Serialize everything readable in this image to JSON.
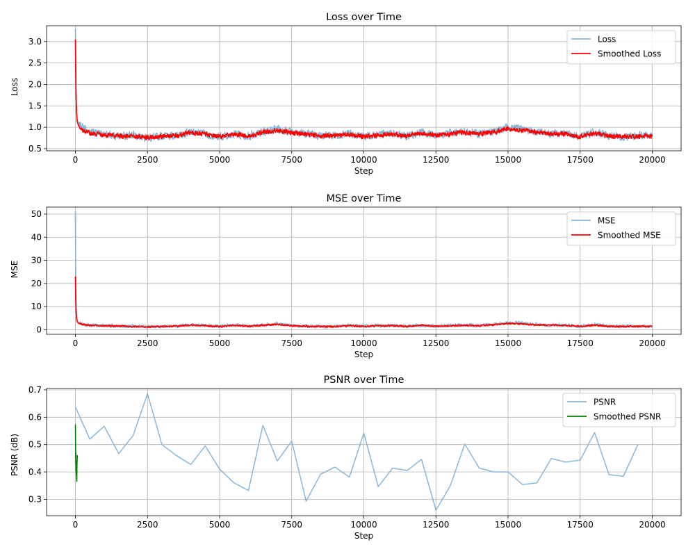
{
  "colors": {
    "raw": "#8ab6d6",
    "smoothed_red": "#ff0000",
    "smoothed_green": "#008000"
  },
  "chart_data": [
    {
      "type": "line",
      "title": "Loss over Time",
      "xlabel": "Step",
      "ylabel": "Loss",
      "xlim": [
        -1000,
        21000
      ],
      "ylim": [
        0.45,
        3.37
      ],
      "xticks": [
        0,
        2500,
        5000,
        7500,
        10000,
        12500,
        15000,
        17500,
        20000
      ],
      "yticks": [
        0.5,
        1.0,
        1.5,
        2.0,
        2.5,
        3.0
      ],
      "ytick_labels": [
        "0.5",
        "1.0",
        "1.5",
        "2.0",
        "2.5",
        "3.0"
      ],
      "grid": true,
      "legend": "top-right",
      "series": [
        {
          "name": "Loss",
          "color": "#8ab6d6",
          "noise": 0.12,
          "x": [
            0,
            10,
            20,
            40,
            60,
            100,
            200,
            500,
            1000,
            1500,
            2000,
            2500,
            3000,
            3500,
            4000,
            4500,
            5000,
            5500,
            6000,
            6500,
            7000,
            7500,
            8000,
            8500,
            9000,
            9500,
            10000,
            10500,
            11000,
            11500,
            12000,
            12500,
            13000,
            13500,
            14000,
            14500,
            15000,
            15500,
            16000,
            16500,
            17000,
            17500,
            18000,
            18500,
            19000,
            19500,
            20000
          ],
          "y": [
            3.3,
            2.6,
            1.9,
            1.4,
            1.2,
            1.1,
            1.0,
            0.88,
            0.84,
            0.8,
            0.8,
            0.75,
            0.8,
            0.8,
            0.9,
            0.85,
            0.78,
            0.85,
            0.8,
            0.9,
            0.95,
            0.88,
            0.85,
            0.8,
            0.82,
            0.85,
            0.78,
            0.82,
            0.85,
            0.8,
            0.88,
            0.82,
            0.85,
            0.9,
            0.85,
            0.9,
            1.0,
            0.95,
            0.9,
            0.85,
            0.85,
            0.78,
            0.88,
            0.8,
            0.78,
            0.8,
            0.8
          ]
        },
        {
          "name": "Smoothed Loss",
          "color": "#ff0000",
          "noise": 0.07,
          "x": [
            0,
            10,
            20,
            40,
            60,
            100,
            200,
            500,
            1000,
            1500,
            2000,
            2500,
            3000,
            3500,
            4000,
            4500,
            5000,
            5500,
            6000,
            6500,
            7000,
            7500,
            8000,
            8500,
            9000,
            9500,
            10000,
            10500,
            11000,
            11500,
            12000,
            12500,
            13000,
            13500,
            14000,
            14500,
            15000,
            15500,
            16000,
            16500,
            17000,
            17500,
            18000,
            18500,
            19000,
            19500,
            20000
          ],
          "y": [
            3.05,
            2.4,
            1.8,
            1.35,
            1.15,
            1.05,
            0.95,
            0.86,
            0.82,
            0.8,
            0.79,
            0.76,
            0.79,
            0.8,
            0.88,
            0.84,
            0.78,
            0.84,
            0.8,
            0.88,
            0.93,
            0.87,
            0.84,
            0.8,
            0.81,
            0.84,
            0.78,
            0.81,
            0.84,
            0.8,
            0.86,
            0.81,
            0.84,
            0.88,
            0.84,
            0.88,
            0.97,
            0.93,
            0.88,
            0.84,
            0.84,
            0.78,
            0.86,
            0.8,
            0.78,
            0.79,
            0.79
          ]
        }
      ]
    },
    {
      "type": "line",
      "title": "MSE over Time",
      "xlabel": "Step",
      "ylabel": "MSE",
      "xlim": [
        -1000,
        21000
      ],
      "ylim": [
        -2,
        53
      ],
      "xticks": [
        0,
        2500,
        5000,
        7500,
        10000,
        12500,
        15000,
        17500,
        20000
      ],
      "yticks": [
        0,
        10,
        20,
        30,
        40,
        50
      ],
      "ytick_labels": [
        "0",
        "10",
        "20",
        "30",
        "40",
        "50"
      ],
      "grid": true,
      "legend": "top-right",
      "series": [
        {
          "name": "MSE",
          "color": "#8ab6d6",
          "noise": 0.9,
          "x": [
            0,
            5,
            10,
            20,
            40,
            60,
            100,
            200,
            500,
            1000,
            1500,
            2000,
            2500,
            3000,
            3500,
            4000,
            4500,
            5000,
            5500,
            6000,
            6500,
            7000,
            7500,
            8000,
            8500,
            9000,
            9500,
            10000,
            10500,
            11000,
            11500,
            12000,
            12500,
            13000,
            13500,
            14000,
            14500,
            15000,
            15500,
            16000,
            16500,
            17000,
            17500,
            18000,
            18500,
            19000,
            19500,
            20000
          ],
          "y": [
            51,
            35,
            22,
            12,
            6,
            4,
            3,
            2.5,
            2.0,
            1.8,
            1.5,
            1.5,
            1.2,
            1.5,
            1.5,
            2.2,
            1.8,
            1.3,
            2.0,
            1.5,
            2.0,
            2.5,
            1.8,
            1.5,
            1.3,
            1.5,
            1.8,
            1.5,
            1.8,
            1.8,
            1.5,
            2.0,
            1.5,
            1.8,
            2.0,
            1.8,
            2.2,
            3.0,
            2.8,
            2.2,
            2.0,
            2.0,
            1.5,
            2.2,
            1.5,
            1.5,
            1.5,
            1.5
          ]
        },
        {
          "name": "Smoothed MSE",
          "color": "#ff0000",
          "noise": 0.45,
          "x": [
            0,
            5,
            10,
            20,
            40,
            60,
            100,
            200,
            500,
            1000,
            1500,
            2000,
            2500,
            3000,
            3500,
            4000,
            4500,
            5000,
            5500,
            6000,
            6500,
            7000,
            7500,
            8000,
            8500,
            9000,
            9500,
            10000,
            10500,
            11000,
            11500,
            12000,
            12500,
            13000,
            13500,
            14000,
            14500,
            15000,
            15500,
            16000,
            16500,
            17000,
            17500,
            18000,
            18500,
            19000,
            19500,
            20000
          ],
          "y": [
            23,
            18,
            14,
            9,
            5,
            3.5,
            2.8,
            2.3,
            1.9,
            1.7,
            1.5,
            1.4,
            1.2,
            1.4,
            1.5,
            2.0,
            1.7,
            1.3,
            1.9,
            1.5,
            1.9,
            2.3,
            1.7,
            1.5,
            1.3,
            1.4,
            1.7,
            1.4,
            1.7,
            1.7,
            1.4,
            1.9,
            1.4,
            1.7,
            1.9,
            1.7,
            2.1,
            2.7,
            2.5,
            2.0,
            1.9,
            1.9,
            1.4,
            2.0,
            1.4,
            1.4,
            1.4,
            1.4
          ]
        }
      ]
    },
    {
      "type": "line",
      "title": "PSNR over Time",
      "xlabel": "Step",
      "ylabel": "PSNR (dB)",
      "xlim": [
        -1000,
        21000
      ],
      "ylim": [
        0.24,
        0.705
      ],
      "xticks": [
        0,
        2500,
        5000,
        7500,
        10000,
        12500,
        15000,
        17500,
        20000
      ],
      "yticks": [
        0.3,
        0.4,
        0.5,
        0.6,
        0.7
      ],
      "ytick_labels": [
        "0.3",
        "0.4",
        "0.5",
        "0.6",
        "0.7"
      ],
      "grid": true,
      "legend": "top-right",
      "series": [
        {
          "name": "PSNR",
          "color": "#8ab6d6",
          "noise": 0,
          "x": [
            0,
            500,
            1000,
            1500,
            2000,
            2500,
            3000,
            3500,
            4000,
            4500,
            5000,
            5500,
            6000,
            6500,
            7000,
            7500,
            8000,
            8500,
            9000,
            9500,
            10000,
            10500,
            11000,
            11500,
            12000,
            12500,
            13000,
            13500,
            14000,
            14500,
            15000,
            15500,
            16000,
            16500,
            17000,
            17500,
            18000,
            18500,
            19000,
            19500
          ],
          "y": [
            0.637,
            0.52,
            0.567,
            0.467,
            0.533,
            0.686,
            0.5,
            0.46,
            0.427,
            0.495,
            0.41,
            0.36,
            0.332,
            0.57,
            0.44,
            0.513,
            0.293,
            0.392,
            0.418,
            0.381,
            0.542,
            0.346,
            0.414,
            0.405,
            0.446,
            0.26,
            0.35,
            0.502,
            0.414,
            0.4,
            0.4,
            0.354,
            0.36,
            0.449,
            0.436,
            0.443,
            0.544,
            0.39,
            0.384,
            0.5
          ]
        },
        {
          "name": "Smoothed PSNR",
          "color": "#008000",
          "noise": 0,
          "x": [
            0,
            5,
            10,
            15,
            20,
            25,
            30,
            35,
            40,
            45,
            50,
            55,
            60,
            65,
            70
          ],
          "y": [
            0.574,
            0.5,
            0.43,
            0.47,
            0.4,
            0.42,
            0.39,
            0.44,
            0.37,
            0.41,
            0.365,
            0.43,
            0.44,
            0.46,
            0.45
          ]
        }
      ]
    }
  ]
}
